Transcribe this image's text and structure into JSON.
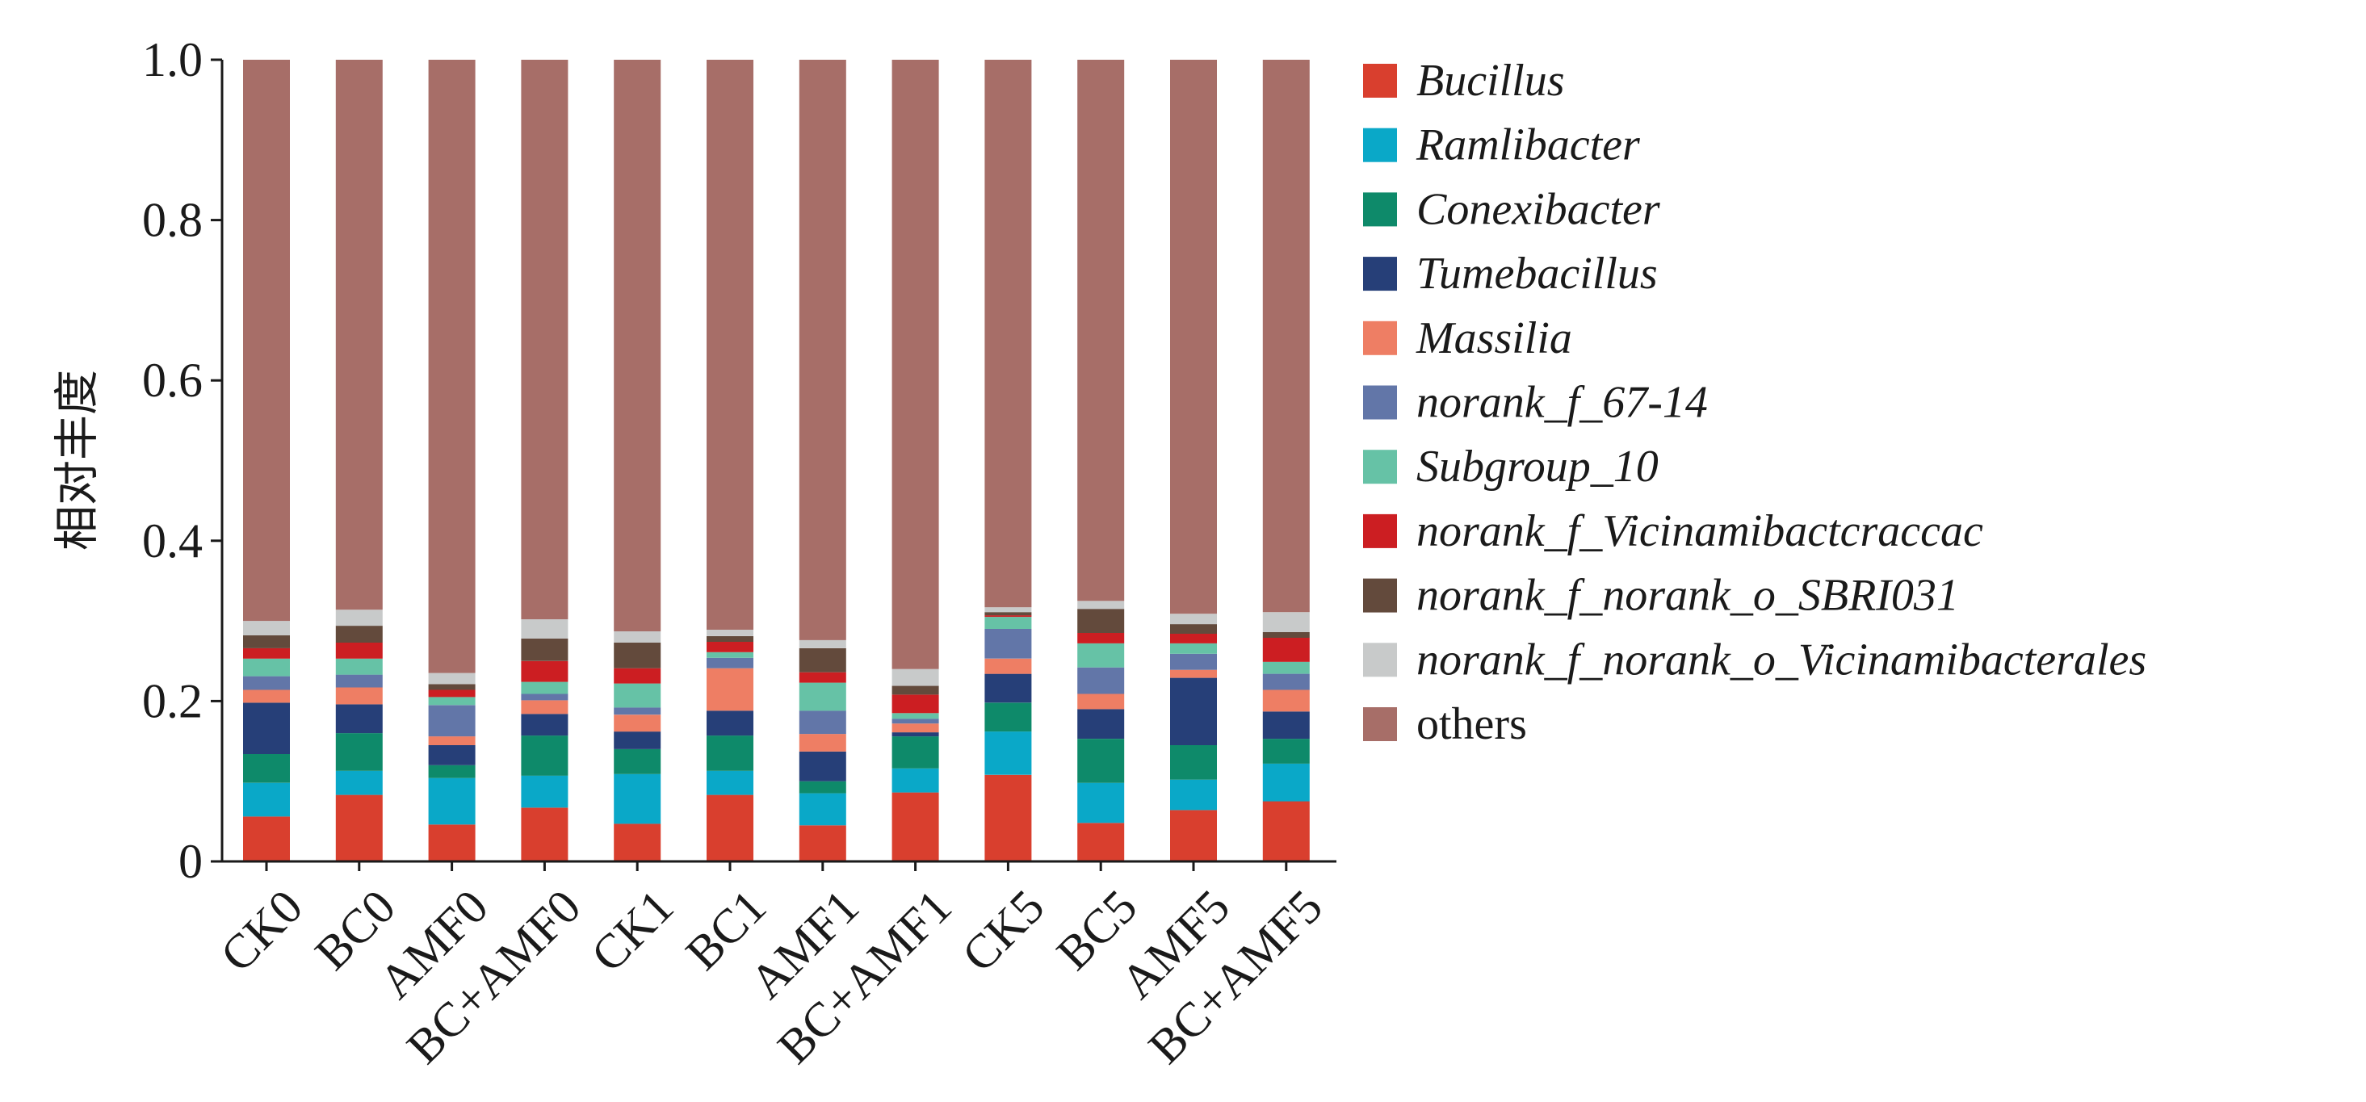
{
  "chart_data": {
    "type": "bar",
    "stacked": true,
    "ylabel": "相对丰度",
    "ylim": [
      0,
      1.0
    ],
    "yticks": [
      "0",
      "0.2",
      "0.4",
      "0.6",
      "0.8",
      "1.0"
    ],
    "ytick_values": [
      0,
      0.2,
      0.4,
      0.6,
      0.8,
      1.0
    ],
    "grid": false,
    "legend_position": "right",
    "categories": [
      "CK0",
      "BC0",
      "AMF0",
      "BC+AMF0",
      "CK1",
      "BC1",
      "AMF1",
      "BC+AMF1",
      "CK5",
      "BC5",
      "AMF5",
      "BC+AMF5"
    ],
    "series": [
      {
        "name": "Bucillus",
        "italic": true,
        "color": "#d93f2e",
        "values": [
          0.056,
          0.083,
          0.046,
          0.067,
          0.047,
          0.083,
          0.045,
          0.086,
          0.108,
          0.048,
          0.064,
          0.075
        ]
      },
      {
        "name": "Ramlibacter",
        "italic": true,
        "color": "#0aa8c8",
        "values": [
          0.042,
          0.03,
          0.058,
          0.04,
          0.062,
          0.03,
          0.04,
          0.03,
          0.054,
          0.05,
          0.038,
          0.047
        ]
      },
      {
        "name": "Conexibacter",
        "italic": true,
        "color": "#0e8a6a",
        "values": [
          0.036,
          0.047,
          0.016,
          0.05,
          0.031,
          0.044,
          0.015,
          0.04,
          0.036,
          0.055,
          0.043,
          0.031
        ]
      },
      {
        "name": "Tumebacillus",
        "italic": true,
        "color": "#263f78",
        "values": [
          0.064,
          0.036,
          0.025,
          0.027,
          0.022,
          0.031,
          0.037,
          0.005,
          0.036,
          0.037,
          0.084,
          0.034
        ]
      },
      {
        "name": "Massilia",
        "italic": true,
        "color": "#ee7e64",
        "values": [
          0.016,
          0.021,
          0.011,
          0.017,
          0.021,
          0.053,
          0.022,
          0.011,
          0.019,
          0.019,
          0.01,
          0.027
        ]
      },
      {
        "name": "norank_f_67-14",
        "italic": true,
        "color": "#6276a8",
        "values": [
          0.017,
          0.016,
          0.039,
          0.008,
          0.009,
          0.013,
          0.029,
          0.006,
          0.037,
          0.033,
          0.02,
          0.02
        ]
      },
      {
        "name": "Subgroup_10",
        "italic": true,
        "color": "#66c2a6",
        "values": [
          0.022,
          0.02,
          0.01,
          0.015,
          0.03,
          0.007,
          0.035,
          0.007,
          0.015,
          0.03,
          0.013,
          0.015
        ]
      },
      {
        "name": "norank_f_Vicinamibactcraccac",
        "italic": true,
        "color": "#cc1e22",
        "values": [
          0.013,
          0.02,
          0.009,
          0.026,
          0.019,
          0.013,
          0.013,
          0.023,
          0.002,
          0.013,
          0.012,
          0.03
        ]
      },
      {
        "name": "norank_f_norank_o_SBRI031",
        "italic": true,
        "color": "#634a3c",
        "values": [
          0.016,
          0.021,
          0.007,
          0.028,
          0.032,
          0.007,
          0.03,
          0.011,
          0.004,
          0.03,
          0.012,
          0.007
        ]
      },
      {
        "name": "norank_f_norank_o_Vicinamibacterales",
        "italic": true,
        "color": "#c8caca",
        "values": [
          0.018,
          0.02,
          0.014,
          0.024,
          0.014,
          0.008,
          0.01,
          0.021,
          0.006,
          0.01,
          0.013,
          0.025
        ]
      },
      {
        "name": "others",
        "italic": false,
        "color": "#a76e68",
        "values": [
          0.7,
          0.686,
          0.765,
          0.698,
          0.713,
          0.711,
          0.724,
          0.76,
          0.683,
          0.675,
          0.691,
          0.689
        ]
      }
    ]
  }
}
